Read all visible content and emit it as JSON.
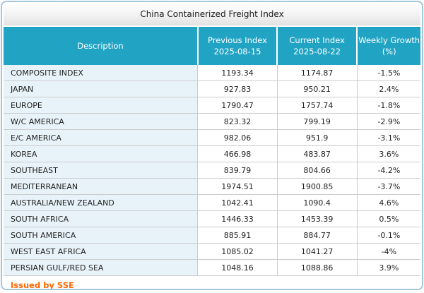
{
  "title": "China Containerized Freight Index",
  "table": {
    "headers": [
      {
        "label": "Description",
        "sub": ""
      },
      {
        "label": "Previous Index",
        "sub": "2025-08-15"
      },
      {
        "label": "Current Index",
        "sub": "2025-08-22"
      },
      {
        "label": "Weekly Growth",
        "sub": "(%)"
      }
    ],
    "rows": [
      {
        "description": "COMPOSITE INDEX",
        "previous": "1193.34",
        "current": "1174.87",
        "growth": "-1.5%"
      },
      {
        "description": "JAPAN",
        "previous": "927.83",
        "current": "950.21",
        "growth": "2.4%"
      },
      {
        "description": "EUROPE",
        "previous": "1790.47",
        "current": "1757.74",
        "growth": "-1.8%"
      },
      {
        "description": "W/C AMERICA",
        "previous": "823.32",
        "current": "799.19",
        "growth": "-2.9%"
      },
      {
        "description": "E/C AMERICA",
        "previous": "982.06",
        "current": "951.9",
        "growth": "-3.1%"
      },
      {
        "description": "KOREA",
        "previous": "466.98",
        "current": "483.87",
        "growth": "3.6%"
      },
      {
        "description": "SOUTHEAST",
        "previous": "839.79",
        "current": "804.66",
        "growth": "-4.2%"
      },
      {
        "description": "MEDITERRANEAN",
        "previous": "1974.51",
        "current": "1900.85",
        "growth": "-3.7%"
      },
      {
        "description": "AUSTRALIA/NEW ZEALAND",
        "previous": "1042.41",
        "current": "1090.4",
        "growth": "4.6%"
      },
      {
        "description": "SOUTH AFRICA",
        "previous": "1446.33",
        "current": "1453.39",
        "growth": "0.5%"
      },
      {
        "description": "SOUTH AMERICA",
        "previous": "885.91",
        "current": "884.77",
        "growth": "-0.1%"
      },
      {
        "description": "WEST EAST AFRICA",
        "previous": "1085.02",
        "current": "1041.27",
        "growth": "-4%"
      },
      {
        "description": "PERSIAN GULF/RED SEA",
        "previous": "1048.16",
        "current": "1088.86",
        "growth": "3.9%"
      }
    ]
  },
  "footer": {
    "issued_by": "Issued by SSE"
  },
  "colors": {
    "header_teal": "#21a3c3",
    "description_cell_blue": "#e8f3f9",
    "panel_border_blue": "#a4c7dc",
    "row_border_gray": "#cccccc",
    "issued_by_orange": "#ff6600",
    "title_text": "#1a1a1a"
  },
  "chart_data": {
    "type": "table",
    "title": "China Containerized Freight Index",
    "columns": [
      "Description",
      "Previous Index 2025-08-15",
      "Current Index 2025-08-22",
      "Weekly Growth (%)"
    ],
    "rows": [
      [
        "COMPOSITE INDEX",
        1193.34,
        1174.87,
        -1.5
      ],
      [
        "JAPAN",
        927.83,
        950.21,
        2.4
      ],
      [
        "EUROPE",
        1790.47,
        1757.74,
        -1.8
      ],
      [
        "W/C AMERICA",
        823.32,
        799.19,
        -2.9
      ],
      [
        "E/C AMERICA",
        982.06,
        951.9,
        -3.1
      ],
      [
        "KOREA",
        466.98,
        483.87,
        3.6
      ],
      [
        "SOUTHEAST",
        839.79,
        804.66,
        -4.2
      ],
      [
        "MEDITERRANEAN",
        1974.51,
        1900.85,
        -3.7
      ],
      [
        "AUSTRALIA/NEW ZEALAND",
        1042.41,
        1090.4,
        4.6
      ],
      [
        "SOUTH AFRICA",
        1446.33,
        1453.39,
        0.5
      ],
      [
        "SOUTH AMERICA",
        885.91,
        884.77,
        -0.1
      ],
      [
        "WEST EAST AFRICA",
        1085.02,
        1041.27,
        -4.0
      ],
      [
        "PERSIAN GULF/RED SEA",
        1048.16,
        1088.86,
        3.9
      ]
    ],
    "footnote": "Issued by SSE"
  }
}
